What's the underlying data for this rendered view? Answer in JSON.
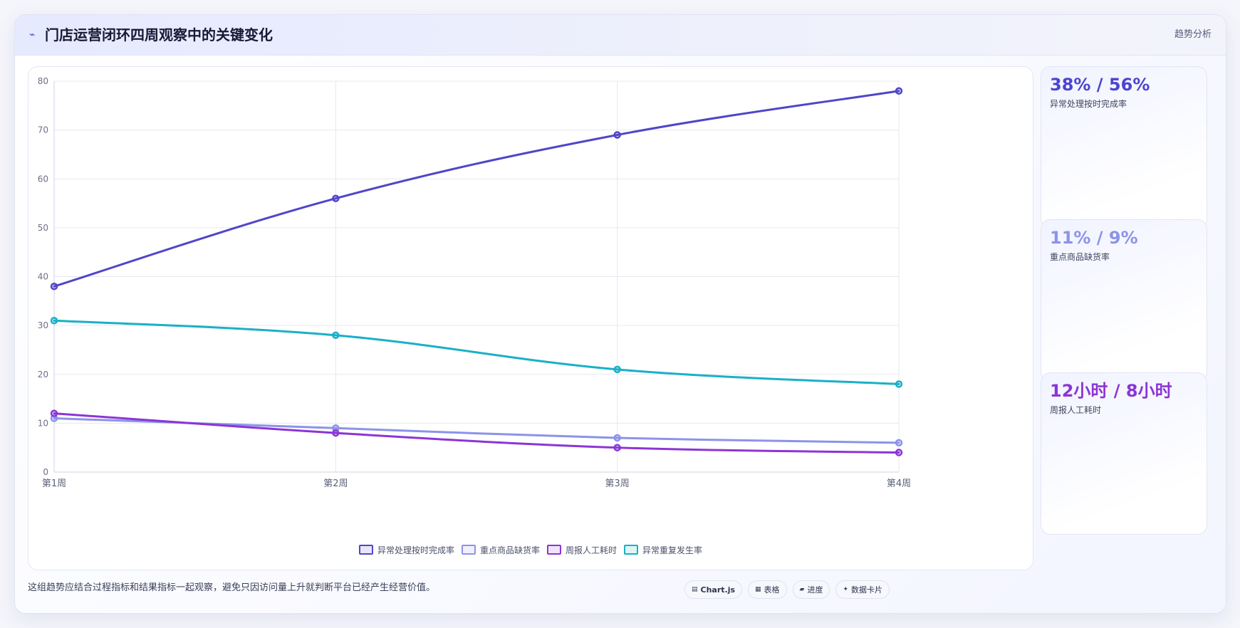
{
  "header": {
    "icon": "trend-line-icon",
    "title": "门店运营闭环四周观察中的关键变化",
    "tag": "趋势分析"
  },
  "chart_data": {
    "type": "line",
    "categories": [
      "第1周",
      "第2周",
      "第3周",
      "第4周"
    ],
    "ylim": [
      0,
      80
    ],
    "yticks": [
      0,
      10,
      20,
      30,
      40,
      50,
      60,
      70,
      80
    ],
    "grid": true,
    "legend_position": "bottom",
    "series": [
      {
        "name": "异常处理按时完成率",
        "values": [
          38,
          56,
          69,
          78
        ],
        "color": "#4f46c8"
      },
      {
        "name": "重点商品缺货率",
        "values": [
          11,
          9,
          7,
          6
        ],
        "color": "#8c93e8"
      },
      {
        "name": "周报人工耗时",
        "values": [
          12,
          8,
          5,
          4
        ],
        "color": "#8b35d6"
      },
      {
        "name": "异常重复发生率",
        "values": [
          31,
          28,
          21,
          18
        ],
        "color": "#1ab0c7"
      }
    ]
  },
  "stats": [
    {
      "value": "38% / 56%",
      "label": "异常处理按时完成率",
      "color": "#4b45cf"
    },
    {
      "value": "11% / 9%",
      "label": "重点商品缺货率",
      "color": "#8c93e8"
    },
    {
      "value": "12小时 / 8小时",
      "label": "周报人工耗时",
      "color": "#8b35d6"
    }
  ],
  "footer": {
    "note": "这组趋势应结合过程指标和结果指标一起观察，避免只因访问量上升就判断平台已经产生经营价值。",
    "tabs": [
      {
        "icon": "▤",
        "label": "Chart.js"
      },
      {
        "icon": "▦",
        "label": "表格"
      },
      {
        "icon": "▰",
        "label": "进度"
      },
      {
        "icon": "✦",
        "label": "数据卡片"
      }
    ]
  }
}
